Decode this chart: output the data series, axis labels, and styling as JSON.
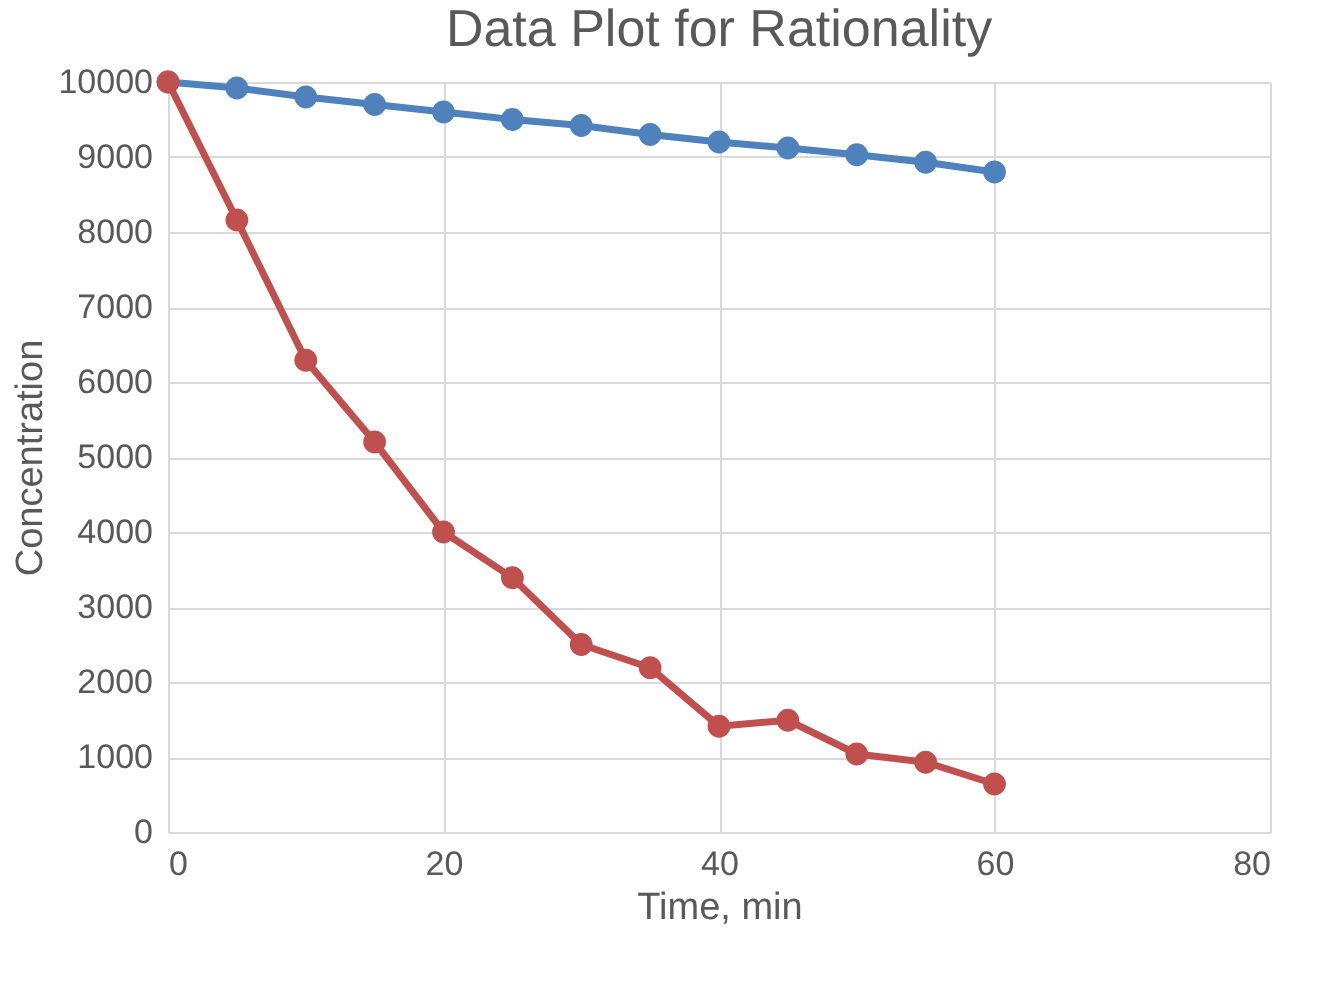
{
  "chart_data": {
    "type": "line",
    "title": "Data Plot for Rationality",
    "xlabel": "Time, min",
    "ylabel": "Concentration",
    "x": [
      0,
      5,
      10,
      15,
      20,
      25,
      30,
      35,
      40,
      45,
      50,
      55,
      60
    ],
    "series": [
      {
        "color": "#4f81bd",
        "values": [
          10000,
          9920,
          9800,
          9700,
          9600,
          9500,
          9420,
          9300,
          9200,
          9120,
          9030,
          8930,
          8800
        ]
      },
      {
        "color": "#c0504d",
        "values": [
          10000,
          8160,
          6290,
          5200,
          4000,
          3390,
          2500,
          2190,
          1410,
          1490,
          1040,
          930,
          640
        ]
      }
    ],
    "xlim": [
      0,
      80
    ],
    "xticks": [
      0,
      20,
      40,
      60,
      80
    ],
    "ylim": [
      0,
      10000
    ],
    "yticks": [
      0,
      1000,
      2000,
      3000,
      4000,
      5000,
      6000,
      7000,
      8000,
      9000,
      10000
    ],
    "grid": true,
    "legend": false,
    "marker": "circle",
    "line_style": "solid"
  }
}
